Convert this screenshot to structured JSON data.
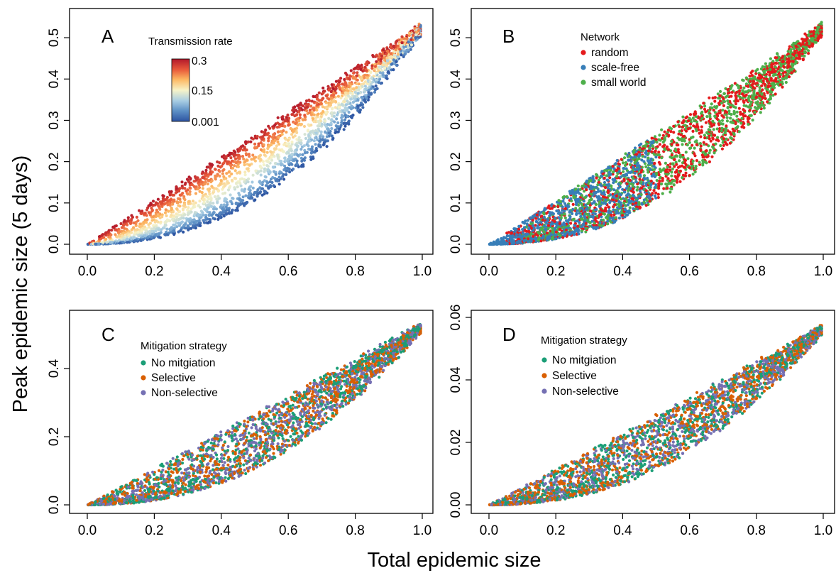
{
  "figure": {
    "xlabel": "Total epidemic size",
    "ylabel": "Peak epidemic size (5 days)"
  },
  "chart_data": [
    {
      "type": "scatter",
      "panel": "A",
      "xlim": [
        0,
        1
      ],
      "ylim": [
        0,
        0.55
      ],
      "xticks": [
        "0.0",
        "0.2",
        "0.4",
        "0.6",
        "0.8",
        "1.0"
      ],
      "yticks": [
        "0.0",
        "0.1",
        "0.2",
        "0.3",
        "0.4",
        "0.5"
      ],
      "legend": {
        "title": "Transmission rate",
        "type": "colorbar",
        "labels": [
          "0.3",
          "0.15",
          "0.001"
        ],
        "range": [
          0.001,
          0.3
        ],
        "colors": [
          "#2c53a1",
          "#5e91c6",
          "#a8cde3",
          "#f7f3c8",
          "#fdb863",
          "#e8593a",
          "#b2182b"
        ]
      },
      "point_cloud": {
        "n_points": 2600,
        "upper_y_at_x1": 0.54,
        "exponent_range": [
          1,
          2.3
        ],
        "color_by": "transmission rate"
      }
    },
    {
      "type": "scatter",
      "panel": "B",
      "xlim": [
        0,
        1
      ],
      "ylim": [
        0,
        0.55
      ],
      "xticks": [
        "0.0",
        "0.2",
        "0.4",
        "0.6",
        "0.8",
        "1.0"
      ],
      "yticks": [
        "0.0",
        "0.1",
        "0.2",
        "0.3",
        "0.4",
        "0.5"
      ],
      "legend": {
        "title": "Network",
        "placement": "top-center",
        "items": [
          {
            "label": "random",
            "color": "#e41a1c"
          },
          {
            "label": "scale-free",
            "color": "#377eb8"
          },
          {
            "label": "small world",
            "color": "#4daf4a"
          }
        ]
      },
      "series": [
        {
          "name": "random",
          "color": "#e41a1c",
          "x_range": [
            0.05,
            1.0
          ],
          "n_points": 1100
        },
        {
          "name": "scale-free",
          "color": "#377eb8",
          "x_range": [
            0.0,
            0.5
          ],
          "n_points": 900
        },
        {
          "name": "small world",
          "color": "#4daf4a",
          "x_range": [
            0.1,
            1.0
          ],
          "n_points": 1100
        }
      ],
      "point_cloud": {
        "upper_y_at_x1": 0.54,
        "exponent_range": [
          1,
          2.3
        ]
      }
    },
    {
      "type": "scatter",
      "panel": "C",
      "xlim": [
        0,
        1
      ],
      "ylim": [
        0,
        0.55
      ],
      "xticks": [
        "0.0",
        "0.2",
        "0.4",
        "0.6",
        "0.8",
        "1.0"
      ],
      "yticks": [
        "0.0",
        "0.2",
        "0.4"
      ],
      "legend": {
        "title": "Mitigation strategy",
        "placement": "top-left",
        "items": [
          {
            "label": "No mitgiation",
            "color": "#1b9e77"
          },
          {
            "label": "Selective",
            "color": "#d95f02"
          },
          {
            "label": "Non-selective",
            "color": "#7570b3"
          }
        ]
      },
      "series": [
        {
          "name": "No mitgiation",
          "color": "#1b9e77",
          "n_points": 900
        },
        {
          "name": "Selective",
          "color": "#d95f02",
          "n_points": 900
        },
        {
          "name": "Non-selective",
          "color": "#7570b3",
          "n_points": 900
        }
      ],
      "point_cloud": {
        "upper_y_at_x1": 0.54,
        "exponent_range": [
          1,
          2.3
        ]
      }
    },
    {
      "type": "scatter",
      "panel": "D",
      "xlim": [
        0,
        1
      ],
      "ylim": [
        0,
        0.06
      ],
      "xticks": [
        "0.0",
        "0.2",
        "0.4",
        "0.6",
        "0.8",
        "1.0"
      ],
      "yticks": [
        "0.00",
        "0.02",
        "0.04",
        "0.06"
      ],
      "legend": {
        "title": "Mitigation strategy",
        "placement": "top-left",
        "items": [
          {
            "label": "No mitgiation",
            "color": "#1b9e77"
          },
          {
            "label": "Selective",
            "color": "#d95f02"
          },
          {
            "label": "Non-selective",
            "color": "#7570b3"
          }
        ]
      },
      "series": [
        {
          "name": "No mitgiation",
          "color": "#1b9e77",
          "n_points": 900
        },
        {
          "name": "Selective",
          "color": "#d95f02",
          "n_points": 900
        },
        {
          "name": "Non-selective",
          "color": "#7570b3",
          "n_points": 900
        }
      ],
      "point_cloud": {
        "upper_y_at_x1": 0.058,
        "exponent_range": [
          1,
          2.3
        ]
      }
    }
  ]
}
